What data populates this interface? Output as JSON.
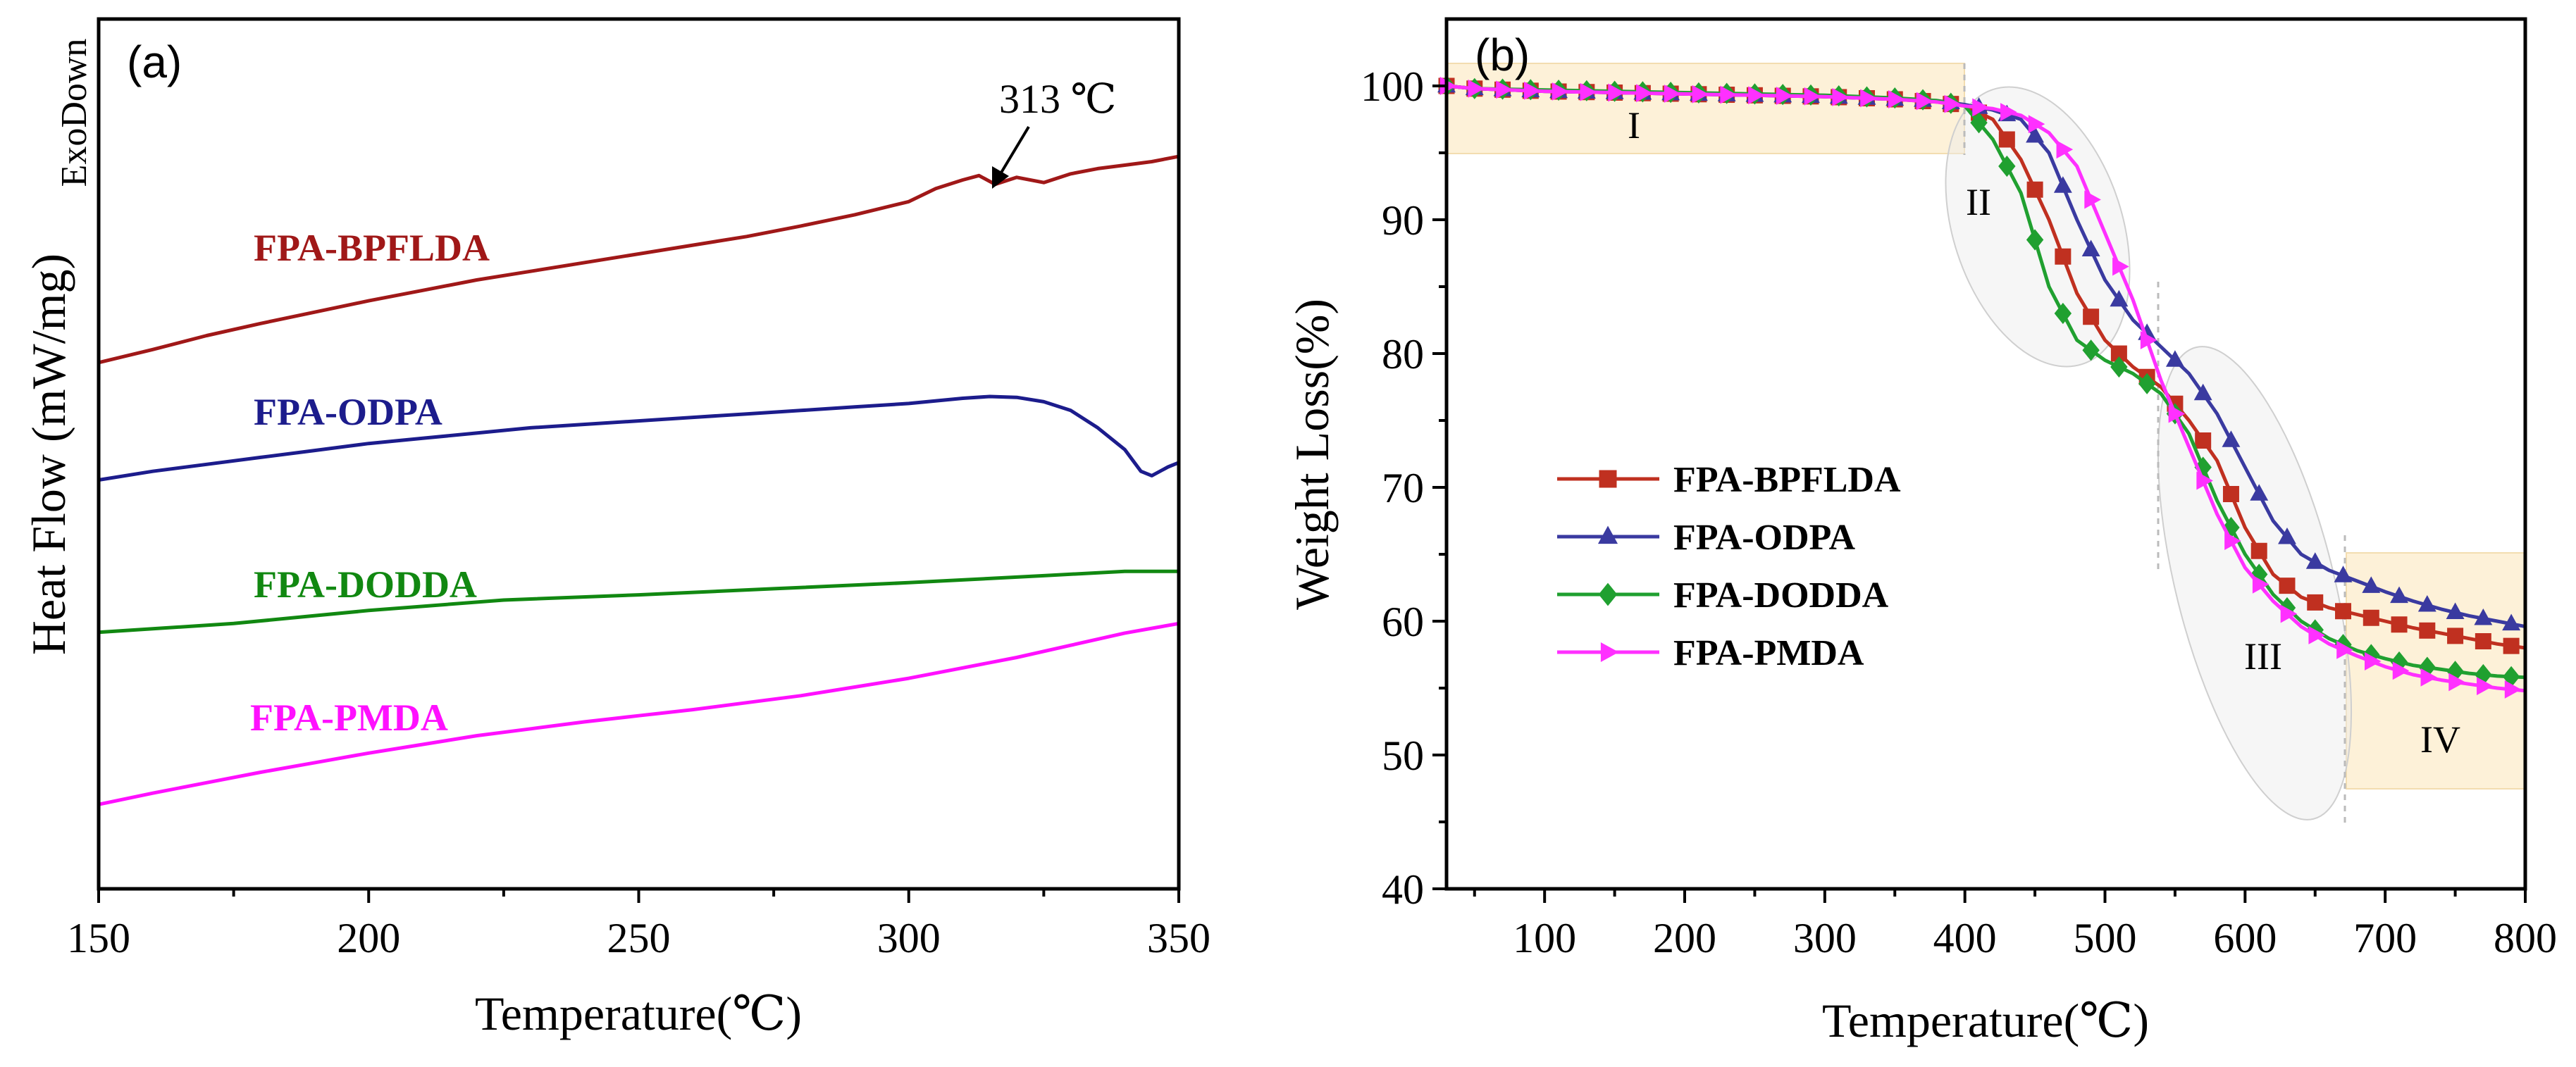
{
  "chart_data": [
    {
      "type": "line",
      "panel_label": "(a)",
      "xlabel": "Temperature(℃)",
      "ylabel": "Heat Flow (mW/mg)",
      "exo_label": "ExoDown",
      "xlim": [
        150,
        350
      ],
      "ylim": [
        0,
        10
      ],
      "xticks": [
        150,
        200,
        250,
        300,
        350
      ],
      "annotation": {
        "text": "313 ℃",
        "x": 315,
        "y": 8.2
      },
      "series": [
        {
          "name": "FPA-BPFLDA",
          "color": "#a01818",
          "x": [
            150,
            160,
            170,
            180,
            190,
            200,
            210,
            220,
            230,
            240,
            250,
            260,
            270,
            280,
            290,
            300,
            305,
            310,
            313,
            316,
            320,
            325,
            330,
            335,
            340,
            345,
            350
          ],
          "y": [
            6.05,
            6.2,
            6.36,
            6.5,
            6.63,
            6.76,
            6.88,
            7.0,
            7.1,
            7.2,
            7.3,
            7.4,
            7.5,
            7.62,
            7.75,
            7.9,
            8.05,
            8.15,
            8.2,
            8.1,
            8.18,
            8.12,
            8.22,
            8.28,
            8.32,
            8.36,
            8.42
          ]
        },
        {
          "name": "FPA-ODPA",
          "color": "#1c1c8c",
          "x": [
            150,
            160,
            170,
            180,
            190,
            200,
            210,
            220,
            230,
            240,
            250,
            260,
            270,
            280,
            290,
            300,
            310,
            315,
            320,
            325,
            330,
            335,
            340,
            343,
            345,
            348,
            350
          ],
          "y": [
            4.7,
            4.8,
            4.88,
            4.96,
            5.04,
            5.12,
            5.18,
            5.24,
            5.3,
            5.34,
            5.38,
            5.42,
            5.46,
            5.5,
            5.54,
            5.58,
            5.64,
            5.66,
            5.65,
            5.6,
            5.5,
            5.3,
            5.05,
            4.8,
            4.75,
            4.85,
            4.9
          ]
        },
        {
          "name": "FPA-DODDA",
          "color": "#118811",
          "x": [
            150,
            175,
            200,
            225,
            250,
            275,
            300,
            325,
            340,
            350
          ],
          "y": [
            2.95,
            3.05,
            3.2,
            3.32,
            3.38,
            3.45,
            3.52,
            3.6,
            3.65,
            3.65
          ]
        },
        {
          "name": "FPA-PMDA",
          "color": "#ff10ff",
          "x": [
            150,
            160,
            170,
            180,
            190,
            200,
            210,
            220,
            230,
            240,
            250,
            260,
            270,
            280,
            290,
            300,
            310,
            320,
            330,
            340,
            350
          ],
          "y": [
            0.97,
            1.1,
            1.22,
            1.34,
            1.45,
            1.56,
            1.66,
            1.76,
            1.84,
            1.92,
            1.99,
            2.06,
            2.14,
            2.22,
            2.32,
            2.42,
            2.54,
            2.66,
            2.8,
            2.94,
            3.05
          ]
        }
      ]
    },
    {
      "type": "line",
      "panel_label": "(b)",
      "xlabel": "Temperature(℃)",
      "ylabel": "Weight Loss(%)",
      "xlim": [
        30,
        800
      ],
      "ylim": [
        40,
        105
      ],
      "xticks": [
        100,
        200,
        300,
        400,
        500,
        600,
        700,
        800
      ],
      "yticks": [
        40,
        50,
        60,
        70,
        80,
        90,
        100
      ],
      "regions": [
        "I",
        "II",
        "III",
        "IV"
      ],
      "legend_position": "center-left",
      "series": [
        {
          "name": "FPA-BPFLDA",
          "color": "#c03020",
          "marker": "square",
          "x": [
            30,
            50,
            100,
            150,
            200,
            250,
            300,
            350,
            380,
            400,
            420,
            440,
            460,
            480,
            500,
            520,
            540,
            560,
            580,
            600,
            620,
            640,
            660,
            680,
            700,
            720,
            740,
            760,
            780,
            800
          ],
          "y": [
            100,
            99.8,
            99.6,
            99.5,
            99.4,
            99.3,
            99.2,
            99.0,
            98.8,
            98.5,
            97.5,
            94.5,
            90,
            84.5,
            81,
            79,
            77.5,
            75,
            72,
            67,
            63.5,
            61.8,
            61,
            60.5,
            60,
            59.5,
            59.1,
            58.7,
            58.3,
            58
          ]
        },
        {
          "name": "FPA-ODPA",
          "color": "#3a3aa0",
          "marker": "triangle-up",
          "x": [
            30,
            50,
            100,
            150,
            200,
            250,
            300,
            350,
            380,
            400,
            420,
            440,
            460,
            480,
            500,
            520,
            540,
            560,
            580,
            600,
            620,
            640,
            660,
            680,
            700,
            720,
            740,
            760,
            780,
            800
          ],
          "y": [
            100,
            99.8,
            99.6,
            99.5,
            99.4,
            99.3,
            99.2,
            99.0,
            98.9,
            98.6,
            98.2,
            97.5,
            95,
            90,
            85.5,
            82.5,
            80.5,
            78.5,
            75.5,
            71.5,
            67.5,
            65,
            63.8,
            63,
            62.2,
            61.5,
            60.9,
            60.4,
            60,
            59.6
          ]
        },
        {
          "name": "FPA-DODDA",
          "color": "#20a030",
          "marker": "diamond",
          "x": [
            30,
            50,
            100,
            150,
            200,
            250,
            300,
            350,
            380,
            400,
            420,
            440,
            460,
            480,
            500,
            520,
            540,
            560,
            580,
            600,
            620,
            640,
            660,
            680,
            700,
            720,
            740,
            760,
            780,
            800
          ],
          "y": [
            100,
            99.8,
            99.7,
            99.6,
            99.5,
            99.4,
            99.3,
            99.1,
            98.9,
            98.5,
            96,
            92,
            85,
            81,
            79.5,
            78.5,
            77,
            74,
            69,
            65,
            62,
            60,
            58.7,
            57.8,
            57.2,
            56.7,
            56.4,
            56.1,
            55.9,
            55.8
          ]
        },
        {
          "name": "FPA-PMDA",
          "color": "#ff30ff",
          "marker": "triangle-right",
          "x": [
            30,
            50,
            100,
            150,
            200,
            250,
            300,
            350,
            380,
            400,
            420,
            440,
            460,
            480,
            500,
            520,
            540,
            560,
            580,
            600,
            620,
            640,
            660,
            680,
            700,
            720,
            740,
            760,
            780,
            800
          ],
          "y": [
            100,
            99.8,
            99.6,
            99.5,
            99.4,
            99.3,
            99.2,
            99.0,
            98.8,
            98.5,
            98.3,
            97.8,
            96.5,
            94,
            89,
            84,
            78,
            73,
            68,
            64,
            61.5,
            59.6,
            58.3,
            57.4,
            56.6,
            56,
            55.6,
            55.3,
            55,
            54.8
          ]
        }
      ]
    }
  ]
}
